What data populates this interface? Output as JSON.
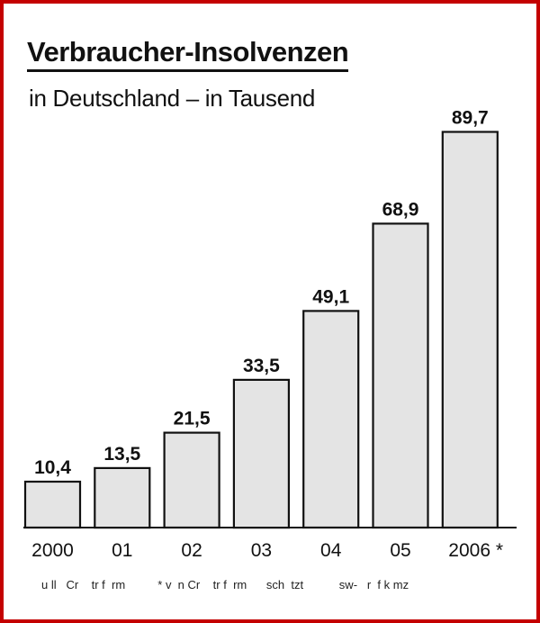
{
  "chart_data": {
    "type": "bar",
    "title": "Verbraucher-Insolvenzen",
    "subtitle": "in Deutschland – in Tausend",
    "categories": [
      "2000",
      "01",
      "02",
      "03",
      "04",
      "05",
      "2006 *"
    ],
    "values": [
      10.4,
      13.5,
      21.5,
      33.5,
      49.1,
      68.9,
      89.7
    ],
    "data_labels": [
      "10,4",
      "13,5",
      "21,5",
      "33,5",
      "49,1",
      "68,9",
      "89,7"
    ],
    "ylim": [
      0,
      100
    ],
    "grid": false,
    "legend": "none",
    "bar_color": "#e4e4e4"
  },
  "source_note": "u ll   Cr    tr f  rm          * v  n Cr    tr f  rm      sch  tzt           sw-   r  f k mz",
  "colors": {
    "frame": "#c40000",
    "bar": "#e4e4e4",
    "text": "#111111"
  }
}
